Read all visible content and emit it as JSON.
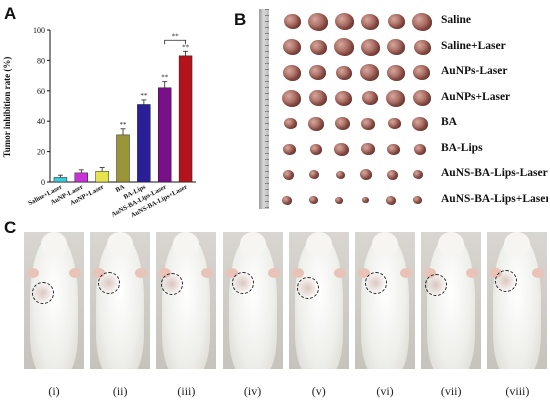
{
  "panels": {
    "a": "A",
    "b": "B",
    "c": "C"
  },
  "chart_data": {
    "type": "bar",
    "ylabel": "Tumor inhibition rate (%)",
    "xlabel": "",
    "ylim": [
      0,
      100
    ],
    "yticks": [
      "0",
      "20",
      "40",
      "60",
      "80",
      "100"
    ],
    "categories": [
      "Saline+Laser",
      "AuNP-Laser",
      "AuNP+Laser",
      "BA",
      "BA-Lips",
      "AuNS-BA-Lips-Laser",
      "AuNS-BA-Lips+Laser"
    ],
    "values": [
      3,
      6,
      7,
      31,
      51,
      62,
      83
    ],
    "errors": [
      1.5,
      2,
      2.5,
      4,
      3,
      4,
      3
    ],
    "colors": [
      "#3ac9d6",
      "#c733d6",
      "#e7e34c",
      "#9a9638",
      "#2a1f98",
      "#7a0f8a",
      "#b3141b"
    ],
    "significance": [
      "",
      "",
      "",
      "**",
      "**",
      "**",
      "**"
    ],
    "bracket_label": "**"
  },
  "panel_b": {
    "groups": [
      "Saline",
      "Saline+Laser",
      "AuNPs-Laser",
      "AuNPs+Laser",
      "BA",
      "BA-Lips",
      "AuNS-BA-Lips-Laser",
      "AuNS-BA-Lips+Laser"
    ]
  },
  "panel_c": {
    "labels": [
      "(i)",
      "(ii)",
      "(iii)",
      "(iv)",
      "(v)",
      "(vi)",
      "(vii)",
      "(viii)"
    ]
  }
}
